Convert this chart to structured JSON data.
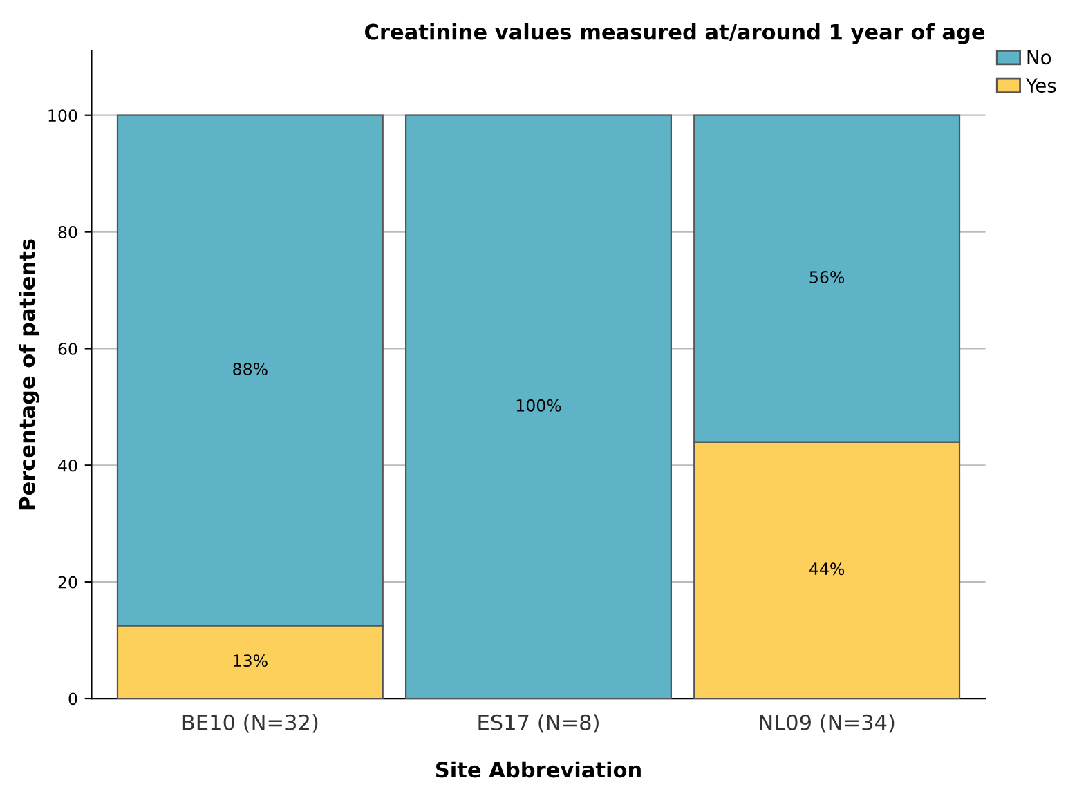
{
  "chart_data": {
    "type": "bar",
    "title": "Creatinine values measured at/around 1 year of age",
    "xlabel": "Site Abbreviation",
    "ylabel": "Percentage of patients",
    "categories": [
      "BE10 (N=32)",
      "ES17 (N=8)",
      "NL09 (N=34)"
    ],
    "stacked": true,
    "series": [
      {
        "name": "Yes",
        "color": "#fdd05c",
        "values": [
          12.5,
          0,
          44
        ],
        "value_labels": [
          "13%",
          null,
          "44%"
        ]
      },
      {
        "name": "No",
        "color": "#5eb3c6",
        "values": [
          87.5,
          100,
          56
        ],
        "value_labels": [
          "88%",
          "100%",
          "56%"
        ]
      }
    ],
    "ylim": [
      0,
      111
    ],
    "yticks": [
      0,
      20,
      40,
      60,
      80,
      100
    ],
    "grid": "y",
    "legend": "top right"
  }
}
